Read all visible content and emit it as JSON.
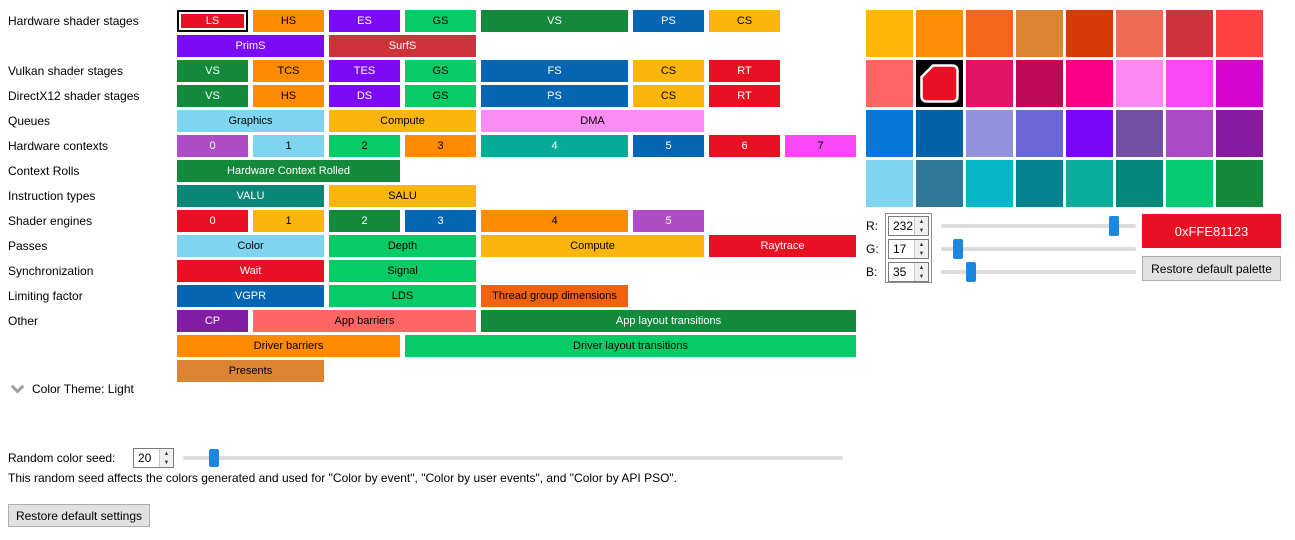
{
  "event_colors": {
    "rows": [
      {
        "label": "Hardware shader stages",
        "chips": [
          {
            "t": "LS",
            "bg": "#E81123",
            "fg": "#FFFFFF",
            "u": 1,
            "sel": true
          },
          {
            "t": "HS",
            "bg": "#FF8C00",
            "fg": "#000000",
            "u": 1
          },
          {
            "t": "ES",
            "bg": "#7B0AF5",
            "fg": "#FFFFFF",
            "u": 1
          },
          {
            "t": "GS",
            "bg": "#07CB67",
            "fg": "#000000",
            "u": 1
          },
          {
            "t": "VS",
            "bg": "#138A3B",
            "fg": "#FFFFFF",
            "u": 2
          },
          {
            "t": "PS",
            "bg": "#0465B2",
            "fg": "#FFFFFF",
            "u": 1
          },
          {
            "t": "CS",
            "bg": "#FBB60D",
            "fg": "#000000",
            "u": 1
          }
        ]
      },
      {
        "label": "",
        "chips": [
          {
            "t": "PrimS",
            "bg": "#7B0AF5",
            "fg": "#FFFFFF",
            "u": 2
          },
          {
            "t": "SurfS",
            "bg": "#CD3439",
            "fg": "#FFFFFF",
            "u": 2
          }
        ]
      },
      {
        "label": "Vulkan shader stages",
        "chips": [
          {
            "t": "VS",
            "bg": "#138A3B",
            "fg": "#FFFFFF",
            "u": 1
          },
          {
            "t": "TCS",
            "bg": "#FF8C00",
            "fg": "#000000",
            "u": 1
          },
          {
            "t": "TES",
            "bg": "#7B0AF5",
            "fg": "#FFFFFF",
            "u": 1
          },
          {
            "t": "GS",
            "bg": "#07CB67",
            "fg": "#000000",
            "u": 1
          },
          {
            "t": "FS",
            "bg": "#0465B2",
            "fg": "#FFFFFF",
            "u": 2
          },
          {
            "t": "CS",
            "bg": "#FBB60D",
            "fg": "#000000",
            "u": 1
          },
          {
            "t": "RT",
            "bg": "#E81123",
            "fg": "#FFFFFF",
            "u": 1
          }
        ]
      },
      {
        "label": "DirectX12 shader stages",
        "chips": [
          {
            "t": "VS",
            "bg": "#138A3B",
            "fg": "#FFFFFF",
            "u": 1
          },
          {
            "t": "HS",
            "bg": "#FF8C00",
            "fg": "#000000",
            "u": 1
          },
          {
            "t": "DS",
            "bg": "#7B0AF5",
            "fg": "#FFFFFF",
            "u": 1
          },
          {
            "t": "GS",
            "bg": "#07CB67",
            "fg": "#000000",
            "u": 1
          },
          {
            "t": "PS",
            "bg": "#0465B2",
            "fg": "#FFFFFF",
            "u": 2
          },
          {
            "t": "CS",
            "bg": "#FBB60D",
            "fg": "#000000",
            "u": 1
          },
          {
            "t": "RT",
            "bg": "#E81123",
            "fg": "#FFFFFF",
            "u": 1
          }
        ]
      },
      {
        "label": "Queues",
        "chips": [
          {
            "t": "Graphics",
            "bg": "#7FD5EF",
            "fg": "#000000",
            "u": 2
          },
          {
            "t": "Compute",
            "bg": "#FBB60D",
            "fg": "#000000",
            "u": 2
          },
          {
            "t": "DMA",
            "bg": "#FB8CF3",
            "fg": "#000000",
            "u": 3
          }
        ]
      },
      {
        "label": "Hardware contexts",
        "chips": [
          {
            "t": "0",
            "bg": "#B04CC6",
            "fg": "#FFFFFF",
            "u": 1
          },
          {
            "t": "1",
            "bg": "#7FD5EF",
            "fg": "#000000",
            "u": 1
          },
          {
            "t": "2",
            "bg": "#07CB67",
            "fg": "#000000",
            "u": 1
          },
          {
            "t": "3",
            "bg": "#FF8C00",
            "fg": "#000000",
            "u": 1
          },
          {
            "t": "4",
            "bg": "#05AB97",
            "fg": "#FFFFFF",
            "u": 2
          },
          {
            "t": "5",
            "bg": "#0465B2",
            "fg": "#FFFFFF",
            "u": 1
          },
          {
            "t": "6",
            "bg": "#E81123",
            "fg": "#FFFFFF",
            "u": 1
          },
          {
            "t": "7",
            "bg": "#FB47FA",
            "fg": "#000000",
            "u": 1
          }
        ]
      },
      {
        "label": "Context Rolls",
        "chips": [
          {
            "t": "Hardware Context Rolled",
            "bg": "#138A3B",
            "fg": "#FFFFFF",
            "u": 3
          }
        ]
      },
      {
        "label": "Instruction types",
        "chips": [
          {
            "t": "VALU",
            "bg": "#0A8679",
            "fg": "#FFFFFF",
            "u": 2
          },
          {
            "t": "SALU",
            "bg": "#FBB60D",
            "fg": "#000000",
            "u": 2
          }
        ]
      },
      {
        "label": "Shader engines",
        "chips": [
          {
            "t": "0",
            "bg": "#E81123",
            "fg": "#FFFFFF",
            "u": 1
          },
          {
            "t": "1",
            "bg": "#FBB60D",
            "fg": "#000000",
            "u": 1
          },
          {
            "t": "2",
            "bg": "#138A3B",
            "fg": "#FFFFFF",
            "u": 1
          },
          {
            "t": "3",
            "bg": "#0465B2",
            "fg": "#FFFFFF",
            "u": 1
          },
          {
            "t": "4",
            "bg": "#FF8C00",
            "fg": "#000000",
            "u": 2
          },
          {
            "t": "5",
            "bg": "#B04CC6",
            "fg": "#FFFFFF",
            "u": 1
          }
        ]
      },
      {
        "label": "Passes",
        "chips": [
          {
            "t": "Color",
            "bg": "#7FD5EF",
            "fg": "#000000",
            "u": 2
          },
          {
            "t": "Depth",
            "bg": "#07CB67",
            "fg": "#000000",
            "u": 2
          },
          {
            "t": "Compute",
            "bg": "#FBB60D",
            "fg": "#000000",
            "u": 3
          },
          {
            "t": "Raytrace",
            "bg": "#E81123",
            "fg": "#FFFFFF",
            "u": 2
          }
        ]
      },
      {
        "label": "Synchronization",
        "chips": [
          {
            "t": "Wait",
            "bg": "#E81123",
            "fg": "#FFFFFF",
            "u": 2
          },
          {
            "t": "Signal",
            "bg": "#07CB67",
            "fg": "#000000",
            "u": 2
          }
        ]
      },
      {
        "label": "Limiting factor",
        "chips": [
          {
            "t": "VGPR",
            "bg": "#0465B2",
            "fg": "#FFFFFF",
            "u": 2
          },
          {
            "t": "LDS",
            "bg": "#07CB67",
            "fg": "#000000",
            "u": 2
          },
          {
            "t": "Thread group dimensions",
            "bg": "#F2610D",
            "fg": "#000000",
            "u": 2
          }
        ]
      },
      {
        "label": "Other",
        "chips": [
          {
            "t": "CP",
            "bg": "#821CA2",
            "fg": "#FFFFFF",
            "u": 1
          },
          {
            "t": "App barriers",
            "bg": "#FF6564",
            "fg": "#000000",
            "u": 3
          },
          {
            "t": "App layout transitions",
            "bg": "#138A3B",
            "fg": "#FFFFFF",
            "u": 5
          }
        ]
      },
      {
        "label": "",
        "chips": [
          {
            "t": "Driver barriers",
            "bg": "#FF8C00",
            "fg": "#000000",
            "u": 3
          },
          {
            "t": "Driver layout transitions",
            "bg": "#07CB67",
            "fg": "#000000",
            "u": 6
          }
        ]
      },
      {
        "label": "",
        "chips": [
          {
            "t": "Presents",
            "bg": "#DD8433",
            "fg": "#000000",
            "u": 2
          }
        ]
      }
    ]
  },
  "theme": {
    "label": "Color Theme: Light"
  },
  "palette": {
    "rows": [
      [
        "#FFB608",
        "#FF8C05",
        "#F4661B",
        "#DD8433",
        "#D63A05",
        "#EE6C55",
        "#CD3439",
        "#FF4343"
      ],
      [
        "#FF6564",
        "#E81123",
        "#E01365",
        "#BE0A55",
        "#FA0088",
        "#FB8BF3",
        "#FB47FA",
        "#D503CE"
      ],
      [
        "#0877D8",
        "#0061A6",
        "#9491DC",
        "#6A68D8",
        "#7A06F8",
        "#7450A5",
        "#AC49C5",
        "#8718A0"
      ],
      [
        "#7FD5EF",
        "#2F7897",
        "#05B7C6",
        "#068190",
        "#0AAD9A",
        "#07867B",
        "#04CB6F",
        "#138A3B"
      ]
    ],
    "selected": {
      "row": 1,
      "col": 1
    },
    "hex_label": "0xFFE81123",
    "current_color": "#E81123"
  },
  "rgb": {
    "channels": [
      {
        "label": "R:",
        "value": 232
      },
      {
        "label": "G:",
        "value": 17
      },
      {
        "label": "B:",
        "value": 35
      }
    ]
  },
  "seed": {
    "label": "Random color seed:",
    "value": "20",
    "description": "This random seed affects the colors generated and used for \"Color by event\", \"Color by user events\", and \"Color by API PSO\"."
  },
  "buttons": {
    "restore_palette": "Restore default palette",
    "restore_settings": "Restore default settings"
  }
}
